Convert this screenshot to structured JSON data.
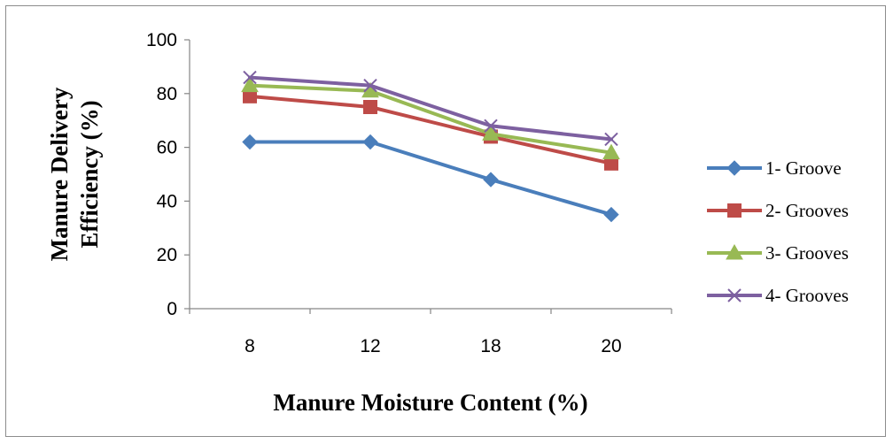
{
  "chart_data": {
    "type": "line",
    "title": "",
    "xlabel": "Manure Moisture Content (%)",
    "ylabel_line1": "Manure Delivery",
    "ylabel_line2": "Efficiency (%)",
    "categories": [
      "8",
      "12",
      "18",
      "20"
    ],
    "ylim": [
      0,
      100
    ],
    "yticks": [
      "0",
      "20",
      "40",
      "60",
      "80",
      "100"
    ],
    "grid": false,
    "legend_position": "right",
    "series": [
      {
        "name": "1- Groove",
        "values": [
          62,
          62,
          48,
          35
        ],
        "color": "#4a7ebb",
        "marker": "diamond"
      },
      {
        "name": "2- Grooves",
        "values": [
          79,
          75,
          64,
          54
        ],
        "color": "#be4b48",
        "marker": "square"
      },
      {
        "name": "3- Grooves",
        "values": [
          83,
          81,
          65,
          58
        ],
        "color": "#98b954",
        "marker": "triangle"
      },
      {
        "name": "4- Grooves",
        "values": [
          86,
          83,
          68,
          63
        ],
        "color": "#7d60a0",
        "marker": "x"
      }
    ]
  }
}
